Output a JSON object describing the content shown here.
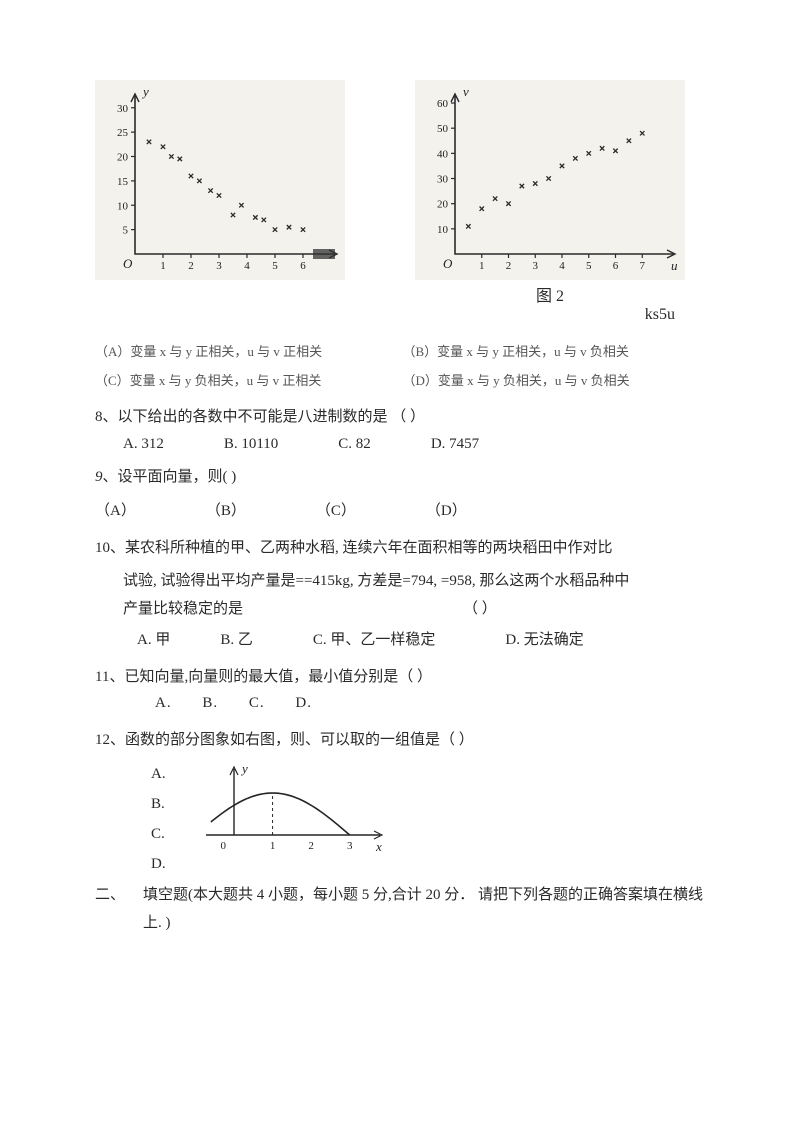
{
  "chart1": {
    "type": "scatter",
    "x_label": "",
    "y_label": "y",
    "y_ticks": [
      5,
      10,
      15,
      20,
      25,
      30
    ],
    "x_ticks": [
      1,
      2,
      3,
      4,
      5,
      6
    ],
    "axis_color": "#2b2b2b",
    "point_color": "#2b2b2b",
    "bg_color": "#f4f2ed",
    "points": [
      [
        0.5,
        23
      ],
      [
        1.0,
        22
      ],
      [
        1.3,
        20
      ],
      [
        1.6,
        19.5
      ],
      [
        2.0,
        16
      ],
      [
        2.3,
        15
      ],
      [
        2.7,
        13
      ],
      [
        3.0,
        12
      ],
      [
        3.5,
        8
      ],
      [
        3.8,
        10
      ],
      [
        4.3,
        7.5
      ],
      [
        4.6,
        7
      ],
      [
        5.0,
        5
      ],
      [
        5.5,
        5.5
      ],
      [
        6.0,
        5
      ]
    ],
    "x_end_smudge": true
  },
  "chart2": {
    "type": "scatter",
    "x_label": "u",
    "y_label": "v",
    "y_ticks": [
      10,
      20,
      30,
      40,
      50,
      60
    ],
    "x_ticks": [
      1,
      2,
      3,
      4,
      5,
      6,
      7
    ],
    "axis_color": "#2b2b2b",
    "point_color": "#2b2b2b",
    "bg_color": "#f4f2ed",
    "points": [
      [
        0.5,
        11
      ],
      [
        1.0,
        18
      ],
      [
        1.5,
        22
      ],
      [
        2.0,
        20
      ],
      [
        2.5,
        27
      ],
      [
        3.0,
        28
      ],
      [
        3.5,
        30
      ],
      [
        4.0,
        35
      ],
      [
        4.5,
        38
      ],
      [
        5.0,
        40
      ],
      [
        5.5,
        42
      ],
      [
        6.0,
        41
      ],
      [
        6.5,
        45
      ],
      [
        7.0,
        48
      ]
    ],
    "caption": "图 2",
    "subcaption": "ks5u"
  },
  "q7": {
    "A": "（A）变量 x 与 y 正相关，u 与 v 正相关",
    "B": "（B）变量 x 与 y 正相关，u 与 v 负相关",
    "C": "（C）变量 x 与 y 负相关，u 与 v 正相关",
    "D": "（D）变量 x 与 y 负相关，u 与 v 负相关"
  },
  "q8": {
    "stem": "8、以下给出的各数中不可能是八进制数的是 （        ）",
    "A": "A. 312",
    "B": "B. 10110",
    "C": "C. 82",
    "D": "D. 7457"
  },
  "q9": {
    "stem": "9、设平面向量，则(       )",
    "A": "（A）",
    "B": "（B）",
    "C": "（C）",
    "D": "（D）"
  },
  "q10": {
    "stem": "10、某农科所种植的甲、乙两种水稻, 连续六年在面积相等的两块稻田中作对比试验, 试验得出平均产量是==415kg, 方差是=794, =958, 那么这两个水稻品种中产量比较稳定的是",
    "trail": "（     ）",
    "A": "A. 甲",
    "B": "B. 乙",
    "C": "C. 甲、乙一样稳定",
    "D": "D. 无法确定"
  },
  "q11": {
    "stem": "11、已知向量,向量则的最大值，最小值分别是（   ）",
    "A": "A.",
    "B": "B.",
    "C": "C.",
    "D": "D."
  },
  "q12": {
    "stem": "12、函数的部分图象如右图，则、可以取的一组值是（     ）",
    "A": "A.",
    "B": "B.",
    "C": "C.",
    "D": "D.",
    "fig": {
      "y_label": "y",
      "x_label": "x",
      "x_ticks": [
        "0",
        "1",
        "2",
        "3"
      ],
      "axis_color": "#252525",
      "curve_color": "#252525",
      "dash_x": 1
    }
  },
  "section2": {
    "label": "二、",
    "text": "填空题(本大题共 4 小题，每小题 5 分,合计 20 分．  请把下列各题的正确答案填在横线上. )"
  }
}
